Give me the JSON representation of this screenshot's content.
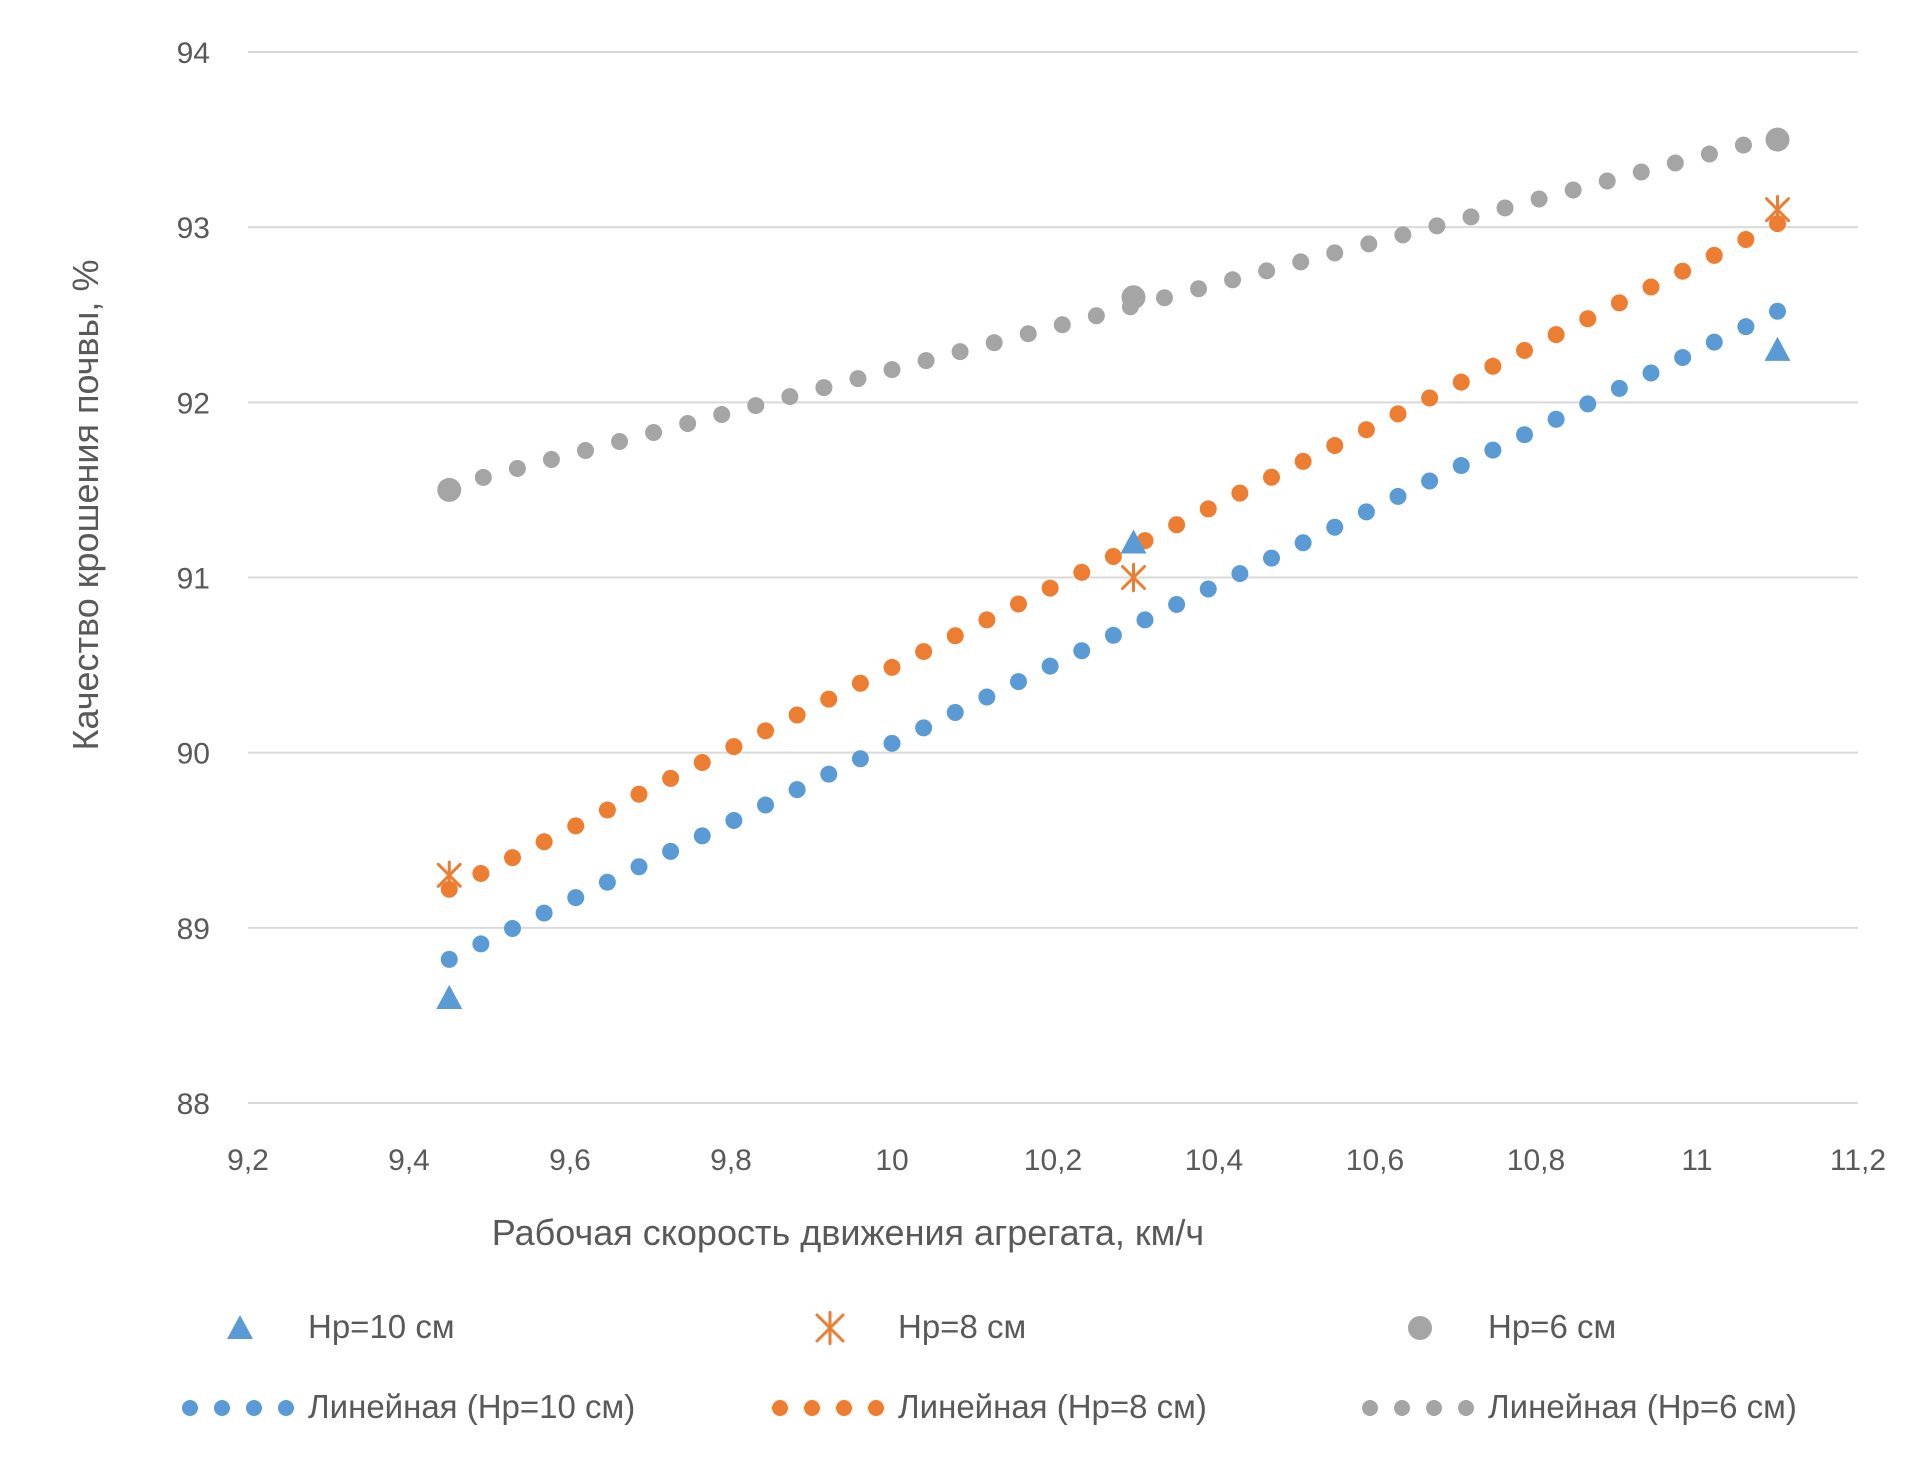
{
  "chart_data": {
    "type": "scatter",
    "xlabel": "Рабочая скорость движения агрегата, км/ч",
    "ylabel": "Качество крошения почвы, %",
    "xlim": [
      9.2,
      11.2
    ],
    "ylim": [
      88,
      94
    ],
    "x_ticks": [
      "9,2",
      "9,4",
      "9,6",
      "9,8",
      "10",
      "10,2",
      "10,4",
      "10,6",
      "10,8",
      "11",
      "11,2"
    ],
    "y_ticks": [
      "88",
      "89",
      "90",
      "91",
      "92",
      "93",
      "94"
    ],
    "grid": "horizontal",
    "legend_position": "bottom",
    "series": [
      {
        "name": "Hр=10 см",
        "marker": "triangle",
        "color": "#5B9BD5",
        "x": [
          9.45,
          10.3,
          11.1
        ],
        "y": [
          88.6,
          91.2,
          92.3
        ]
      },
      {
        "name": "Hр=8 см",
        "marker": "asterisk",
        "color": "#ED7D31",
        "x": [
          9.45,
          10.3,
          11.1
        ],
        "y": [
          89.3,
          91.0,
          93.1
        ]
      },
      {
        "name": "Hр=6 см",
        "marker": "circle",
        "color": "#A5A5A5",
        "x": [
          9.45,
          10.3,
          11.1
        ],
        "y": [
          91.5,
          92.6,
          93.5
        ]
      }
    ],
    "trendlines": [
      {
        "name": "Линейная (Hр=10 см)",
        "color": "#5B9BD5",
        "x": [
          9.45,
          11.1
        ],
        "y": [
          88.82,
          92.52
        ]
      },
      {
        "name": "Линейная (Hр=8 см)",
        "color": "#ED7D31",
        "x": [
          9.45,
          11.1
        ],
        "y": [
          89.22,
          93.02
        ]
      },
      {
        "name": "Линейная (Hр=6 см)",
        "color": "#A5A5A5",
        "x": [
          9.45,
          11.1
        ],
        "y": [
          91.52,
          93.52
        ]
      }
    ]
  }
}
